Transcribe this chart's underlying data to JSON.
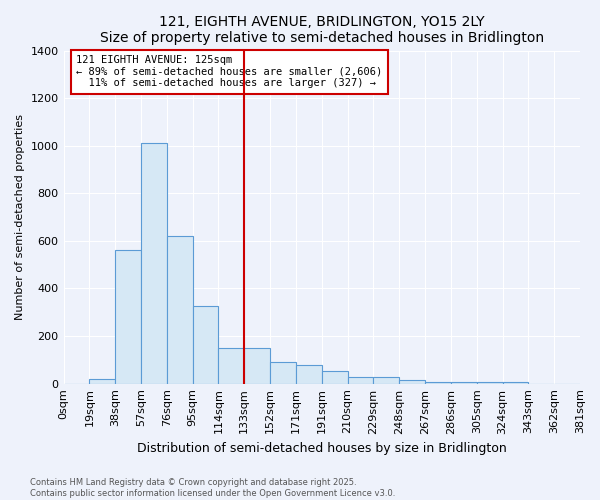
{
  "title": "121, EIGHTH AVENUE, BRIDLINGTON, YO15 2LY",
  "subtitle": "Size of property relative to semi-detached houses in Bridlington",
  "xlabel": "Distribution of semi-detached houses by size in Bridlington",
  "ylabel": "Number of semi-detached properties",
  "footnote1": "Contains HM Land Registry data © Crown copyright and database right 2025.",
  "footnote2": "Contains public sector information licensed under the Open Government Licence v3.0.",
  "bins": [
    "0sqm",
    "19sqm",
    "38sqm",
    "57sqm",
    "76sqm",
    "95sqm",
    "114sqm",
    "133sqm",
    "152sqm",
    "171sqm",
    "191sqm",
    "210sqm",
    "229sqm",
    "248sqm",
    "267sqm",
    "286sqm",
    "305sqm",
    "324sqm",
    "343sqm",
    "362sqm",
    "381sqm"
  ],
  "values": [
    0,
    20,
    560,
    1010,
    620,
    325,
    150,
    150,
    90,
    80,
    55,
    30,
    30,
    15,
    5,
    5,
    5,
    5,
    0,
    0,
    0
  ],
  "bar_color": "#d6e8f5",
  "bar_edge_color": "#5b9bd5",
  "vline_x_bin": 7,
  "vline_color": "#cc0000",
  "annotation_text": "121 EIGHTH AVENUE: 125sqm\n← 89% of semi-detached houses are smaller (2,606)\n  11% of semi-detached houses are larger (327) →",
  "annotation_box_color": "#ffffff",
  "annotation_box_edge": "#cc0000",
  "ylim": [
    0,
    1400
  ],
  "yticks": [
    0,
    200,
    400,
    600,
    800,
    1000,
    1200,
    1400
  ],
  "background_color": "#eef2fb",
  "grid_color": "#ffffff"
}
